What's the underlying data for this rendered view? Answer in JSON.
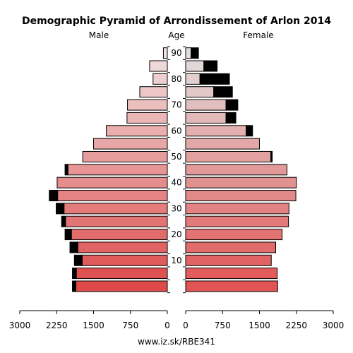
{
  "chart_data": {
    "type": "bar",
    "title": "Demographic Pyramid of Arrondissement of Arlon 2014",
    "left_label": "Male",
    "center_label": "Age",
    "right_label": "Female",
    "source": "www.iz.sk/RBE341",
    "age_ticks": [
      "90",
      "80",
      "70",
      "60",
      "50",
      "40",
      "30",
      "20",
      "10"
    ],
    "x_ticks_male": [
      "3000",
      "2250",
      "1500",
      "750",
      "0"
    ],
    "x_ticks_female": [
      "0",
      "750",
      "1500",
      "2250",
      "3000"
    ],
    "xlim": [
      0,
      3000
    ],
    "age_groups": [
      "90+",
      "85-89",
      "80-84",
      "75-79",
      "70-74",
      "65-69",
      "60-64",
      "55-59",
      "50-54",
      "45-49",
      "40-44",
      "35-39",
      "30-34",
      "25-29",
      "20-24",
      "15-19",
      "10-14",
      "5-9",
      "0-4"
    ],
    "series": [
      {
        "name": "Male",
        "values": [
          80,
          360,
          290,
          560,
          810,
          820,
          1240,
          1500,
          1720,
          2020,
          2240,
          2230,
          2100,
          2070,
          1950,
          1820,
          1730,
          1850,
          1860
        ]
      },
      {
        "name": "Male",
        "values": [
          0,
          0,
          0,
          0,
          0,
          0,
          0,
          0,
          0,
          60,
          0,
          170,
          160,
          80,
          130,
          160,
          160,
          80,
          70
        ]
      },
      {
        "name": "Female",
        "values": [
          110,
          370,
          290,
          570,
          820,
          820,
          1230,
          1500,
          1730,
          2060,
          2250,
          2240,
          2100,
          2090,
          1960,
          1830,
          1740,
          1860,
          1870
        ]
      },
      {
        "name": "Female",
        "values": [
          150,
          270,
          600,
          380,
          240,
          200,
          130,
          0,
          30,
          0,
          0,
          0,
          0,
          0,
          0,
          0,
          0,
          0,
          0
        ]
      }
    ]
  }
}
